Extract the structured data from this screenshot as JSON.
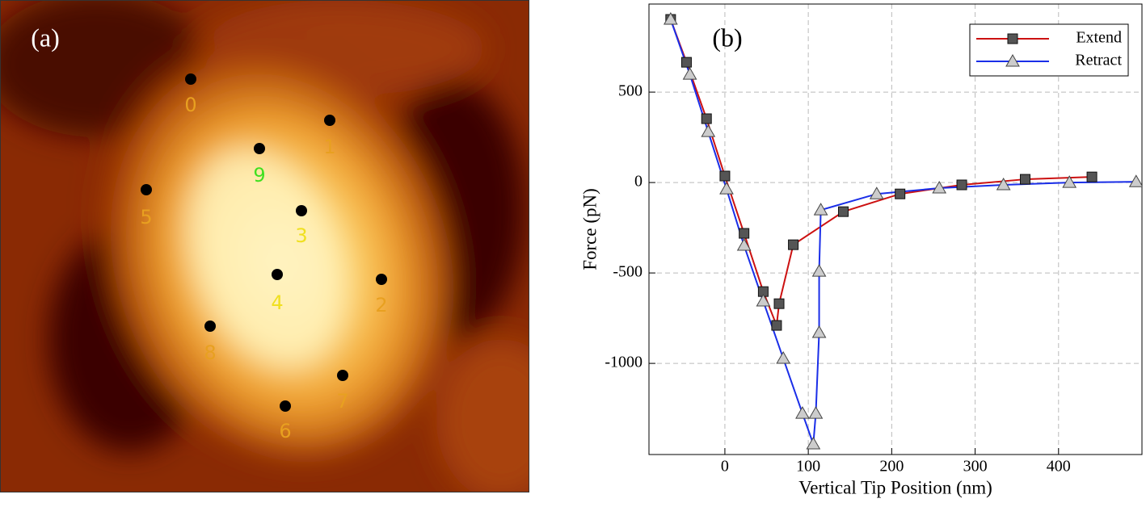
{
  "image_panel": {
    "label": "(a)",
    "points": [
      {
        "label": "0",
        "color": "#e8a020"
      },
      {
        "label": "1",
        "color": "#e8a020"
      },
      {
        "label": "2",
        "color": "#e8a020"
      },
      {
        "label": "3",
        "color": "#f0e020"
      },
      {
        "label": "4",
        "color": "#f0e020"
      },
      {
        "label": "5",
        "color": "#e8a020"
      },
      {
        "label": "6",
        "color": "#e8a020"
      },
      {
        "label": "7",
        "color": "#e8a020"
      },
      {
        "label": "8",
        "color": "#e8a020"
      },
      {
        "label": "9",
        "color": "#40e020"
      }
    ]
  },
  "chart_data": {
    "type": "line",
    "panel_label": "(b)",
    "x_label": "Vertical Tip Position (nm)",
    "y_label": "Force (pN)",
    "xlim": [
      -91,
      500
    ],
    "ylim": [
      -1504,
      987
    ],
    "xticks": [
      0,
      100,
      200,
      300,
      400
    ],
    "yticks": [
      -1000,
      -500,
      0,
      500
    ],
    "grid": true,
    "legend": "upper right",
    "series": [
      {
        "name": "Extend",
        "color": "#cc1111",
        "marker": "square",
        "x": [
          -65,
          -46,
          -22,
          0,
          23,
          46,
          62,
          65,
          82,
          142,
          210,
          284,
          360,
          440
        ],
        "values": [
          902,
          665,
          353,
          36,
          -281,
          -603,
          -790,
          -670,
          -344,
          -161,
          -63,
          -13,
          18,
          31
        ]
      },
      {
        "name": "Retract",
        "color": "#1a2ee8",
        "marker": "triangle",
        "x": [
          -65,
          -42,
          -20,
          2,
          23,
          46,
          70,
          93,
          106,
          109,
          113,
          113,
          115,
          182,
          257,
          334,
          413,
          493
        ],
        "values": [
          902,
          598,
          281,
          -36,
          -348,
          -656,
          -973,
          -1277,
          -1446,
          -1277,
          -830,
          -491,
          -152,
          -63,
          -31,
          -13,
          0,
          4
        ]
      }
    ]
  }
}
